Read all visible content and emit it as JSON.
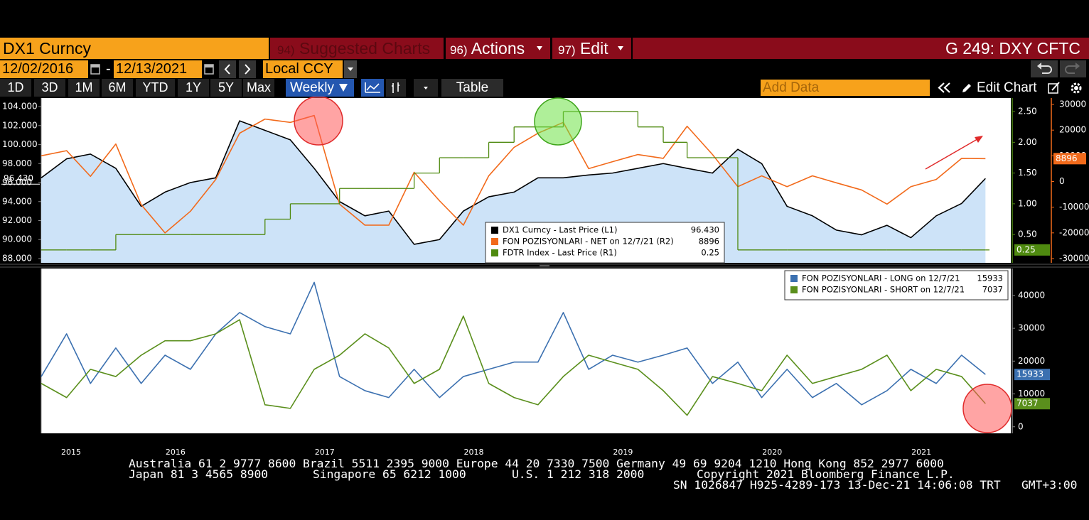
{
  "header": {
    "security": "DX1 Curncy",
    "menu": [
      {
        "number": "94)",
        "label": "Suggested Charts"
      },
      {
        "number": "96)",
        "label": "Actions"
      },
      {
        "number": "97)",
        "label": "Edit"
      }
    ],
    "code": "G 249: DXY CFTC"
  },
  "toolbar": {
    "start_date": "12/02/2016",
    "separator": "-",
    "end_date": "12/13/2021",
    "currency": "Local CCY",
    "periods": [
      "1D",
      "3D",
      "1M",
      "6M",
      "YTD",
      "1Y",
      "5Y",
      "Max"
    ],
    "frequency": "Weekly",
    "table": "Table",
    "add_data": "Add Data",
    "edit_chart": "Edit Chart"
  },
  "chart_data": [
    {
      "type": "line",
      "x": [
        2015.6,
        2015.77,
        2015.93,
        2016.1,
        2016.27,
        2016.43,
        2016.6,
        2016.77,
        2016.93,
        2017.1,
        2017.27,
        2017.43,
        2017.6,
        2017.77,
        2017.93,
        2018.1,
        2018.27,
        2018.43,
        2018.6,
        2018.77,
        2018.93,
        2019.1,
        2019.27,
        2019.43,
        2019.6,
        2019.77,
        2019.93,
        2020.1,
        2020.27,
        2020.43,
        2020.6,
        2020.77,
        2020.93,
        2021.1,
        2021.27,
        2021.43,
        2021.6,
        2021.77,
        2021.93
      ],
      "xlim": [
        2015.6,
        2022.1
      ],
      "ylim": [
        87.55,
        104.9
      ],
      "yticks": [
        {
          "value": 88,
          "label": "88.000"
        },
        {
          "value": 90,
          "label": "90.000"
        },
        {
          "value": 92,
          "label": "92.000"
        },
        {
          "value": 94,
          "label": "94.000"
        },
        {
          "value": 96,
          "label": "96.000"
        },
        {
          "value": 98,
          "label": "98.000"
        },
        {
          "value": 100,
          "label": "100.000"
        },
        {
          "value": 102,
          "label": "102.000"
        },
        {
          "value": 104,
          "label": "104.000"
        }
      ],
      "y2lim": [
        0.04,
        2.72
      ],
      "y2ticks": [
        {
          "value": 0.5,
          "label": "0.50"
        },
        {
          "value": 1,
          "label": "1.00"
        },
        {
          "value": 1.5,
          "label": "1.50"
        },
        {
          "value": 2,
          "label": "2.00"
        },
        {
          "value": 2.5,
          "label": "2.50"
        }
      ],
      "y3lim": [
        -31660,
        32490
      ],
      "y3ticks": [
        -30000,
        -20000,
        -10000,
        0,
        10000,
        20000,
        30000
      ],
      "series": [
        {
          "name": "DX1 Curncy - Last Price (L1)",
          "color": "#000000",
          "fill": "#cde3f8",
          "last_label": "96.430",
          "values": [
            96.5,
            98.5,
            99,
            97.5,
            93.5,
            95,
            96,
            96.5,
            102.5,
            101.5,
            100.5,
            97.5,
            94,
            92.5,
            93,
            89.5,
            90,
            93,
            94.5,
            95,
            96.5,
            96.5,
            96.8,
            97,
            97.5,
            98,
            97.5,
            97,
            99.5,
            98,
            93.5,
            92.5,
            91,
            90.5,
            91.5,
            90.2,
            92.5,
            93.8,
            96.43
          ]
        },
        {
          "name": "FON POZISYONLARI - NET on 12/7/21 (R2)",
          "color": "#f26a1b",
          "axis": "y3",
          "values": [
            10000,
            12000,
            2000,
            14600,
            -9000,
            -20000,
            -11600,
            800,
            18800,
            24300,
            23000,
            25700,
            -8800,
            -17000,
            -17000,
            3600,
            -7500,
            -17000,
            2200,
            13300,
            18800,
            23000,
            5000,
            7700,
            10500,
            9000,
            21500,
            10500,
            -2000,
            2200,
            -2000,
            2200,
            -500,
            -3300,
            -8800,
            -2000,
            800,
            9000,
            8896
          ]
        },
        {
          "name": "FDTR Index - Last Price (R1)",
          "color": "#4f8a10",
          "axis": "y2",
          "step": true,
          "values": [
            0.25,
            0.25,
            0.25,
            0.5,
            0.5,
            0.5,
            0.5,
            0.5,
            0.5,
            0.75,
            1,
            1,
            1.25,
            1.25,
            1.25,
            1.5,
            1.75,
            1.75,
            2,
            2.25,
            2.25,
            2.5,
            2.5,
            2.5,
            2.25,
            2,
            1.75,
            1.75,
            0.25,
            0.25,
            0.25,
            0.25,
            0.25,
            0.25,
            0.25,
            0.25,
            0.25,
            0.25,
            0.25
          ]
        }
      ]
    },
    {
      "type": "line",
      "x": [
        2015.6,
        2015.77,
        2015.93,
        2016.1,
        2016.27,
        2016.43,
        2016.6,
        2016.77,
        2016.93,
        2017.1,
        2017.27,
        2017.43,
        2017.6,
        2017.77,
        2017.93,
        2018.1,
        2018.27,
        2018.43,
        2018.6,
        2018.77,
        2018.93,
        2019.1,
        2019.27,
        2019.43,
        2019.6,
        2019.77,
        2019.93,
        2020.1,
        2020.27,
        2020.43,
        2020.6,
        2020.77,
        2020.93,
        2021.1,
        2021.27,
        2021.43,
        2021.6,
        2021.77,
        2021.93
      ],
      "xlim": [
        2015.6,
        2022.1
      ],
      "xticks": [
        2015,
        2016,
        2017,
        2018,
        2019,
        2020,
        2021
      ],
      "ylim": [
        -2000,
        48200
      ],
      "yticks": [
        0,
        10000,
        20000,
        30000,
        40000
      ],
      "series": [
        {
          "name": "FON POZISYONLARI - LONG on 12/7/21",
          "color": "#3b70b0",
          "values": [
            15300,
            28300,
            13200,
            24000,
            13200,
            21800,
            17500,
            28300,
            34800,
            30500,
            28300,
            44000,
            15300,
            11000,
            8900,
            17500,
            8900,
            15300,
            17500,
            19700,
            19700,
            34800,
            17500,
            21800,
            19700,
            21800,
            24000,
            13200,
            19700,
            8900,
            17500,
            8900,
            13200,
            6700,
            11000,
            17500,
            13200,
            21800,
            15933
          ]
        },
        {
          "name": "FON POZISYONLARI - SHORT on 12/7/21",
          "color": "#5a8f1c",
          "values": [
            13200,
            8900,
            17500,
            15300,
            21800,
            26200,
            26200,
            28300,
            32600,
            6700,
            5600,
            17500,
            21800,
            28300,
            24000,
            13200,
            17500,
            33700,
            13200,
            8900,
            6700,
            15300,
            21800,
            19700,
            17500,
            11000,
            3500,
            15300,
            13200,
            11000,
            21800,
            13200,
            15300,
            17500,
            21800,
            11000,
            17500,
            15300,
            7037
          ]
        }
      ]
    }
  ],
  "footer": {
    "line1": "Australia 61 2 9777 8600 Brazil 5511 2395 9000 Europe 44 20 7330 7500 Germany 49 69 9204 1210 Hong Kong 852 2977 6000",
    "line2": [
      "Japan 81 3 4565 8900",
      "Singapore 65 6212 1000",
      "U.S. 1 212 318 2000",
      "Copyright 2021 Bloomberg Finance L.P."
    ],
    "line3": [
      "SN 1026847 H925-4289-173 13-Dec-21 14:06:08 TRT",
      "GMT+3:00"
    ]
  }
}
